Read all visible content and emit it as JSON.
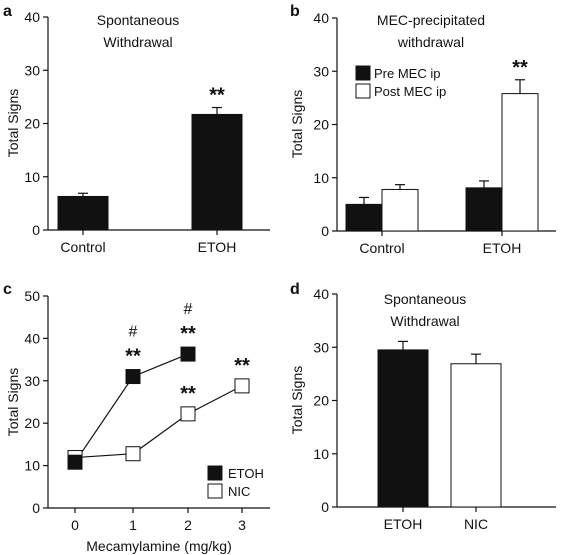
{
  "chart_data": [
    {
      "panel": "a",
      "type": "bar",
      "title": "Spontaneous Withdrawal",
      "title_lines": [
        "Spontaneous",
        "Withdrawal"
      ],
      "categories": [
        "Control",
        "ETOH"
      ],
      "values": [
        6.3,
        21.7
      ],
      "errors": [
        0.6,
        1.3
      ],
      "ylabel": "Total Signs",
      "ylim": [
        0,
        40
      ],
      "yticks": [
        0,
        10,
        20,
        30,
        40
      ],
      "bar_colors": [
        "#111111",
        "#111111"
      ],
      "annotations": [
        {
          "category": "ETOH",
          "text": "**"
        }
      ]
    },
    {
      "panel": "b",
      "type": "bar",
      "title": "MEC-precipitated withdrawal",
      "title_lines": [
        "MEC-precipitated",
        "withdrawal"
      ],
      "categories": [
        "Control",
        "ETOH"
      ],
      "series": [
        {
          "name": "Pre MEC ip",
          "values": [
            5.0,
            8.1
          ],
          "errors": [
            1.3,
            1.3
          ],
          "color": "#111111"
        },
        {
          "name": "Post MEC ip",
          "values": [
            7.8,
            25.8
          ],
          "errors": [
            0.9,
            2.6
          ],
          "color": "#ffffff"
        }
      ],
      "ylabel": "Total Signs",
      "ylim": [
        0,
        40
      ],
      "yticks": [
        0,
        10,
        20,
        30,
        40
      ],
      "legend": "top-left",
      "annotations": [
        {
          "category": "ETOH",
          "series": "Post MEC ip",
          "text": "**"
        }
      ]
    },
    {
      "panel": "c",
      "type": "line",
      "x": [
        0,
        1,
        2,
        3
      ],
      "xlabel": "Mecamylamine (mg/kg)",
      "ylabel": "Total Signs",
      "ylim": [
        0,
        50
      ],
      "yticks": [
        0,
        10,
        20,
        30,
        40,
        50
      ],
      "xticks": [
        0,
        1,
        2,
        3
      ],
      "series": [
        {
          "name": "ETOH",
          "x": [
            0,
            1,
            2
          ],
          "values": [
            10.8,
            31.0,
            36.3
          ],
          "color": "#111111"
        },
        {
          "name": "NIC",
          "x": [
            0,
            1,
            2,
            3
          ],
          "values": [
            11.9,
            12.8,
            22.2,
            28.8
          ],
          "color": "#ffffff"
        }
      ],
      "legend": "bottom-right",
      "annotations": [
        {
          "x": 1,
          "text": "**",
          "anchor": 31.0
        },
        {
          "x": 1,
          "text": "#",
          "anchor": 31.0
        },
        {
          "x": 2,
          "text": "**",
          "anchor": 36.3
        },
        {
          "x": 2,
          "text": "#",
          "anchor": 36.3
        },
        {
          "x": 2,
          "text": "**",
          "anchor": 22.2
        },
        {
          "x": 3,
          "text": "**",
          "anchor": 28.8
        }
      ]
    },
    {
      "panel": "d",
      "type": "bar",
      "title": "Spontaneous Withdrawal",
      "title_lines": [
        "Spontaneous",
        "Withdrawal"
      ],
      "categories": [
        "ETOH",
        "NIC"
      ],
      "values": [
        29.5,
        26.9
      ],
      "errors": [
        1.6,
        1.8
      ],
      "bar_colors": [
        "#111111",
        "#ffffff"
      ],
      "ylabel": "Total Signs",
      "ylim": [
        0,
        40
      ],
      "yticks": [
        0,
        10,
        20,
        30,
        40
      ]
    }
  ]
}
